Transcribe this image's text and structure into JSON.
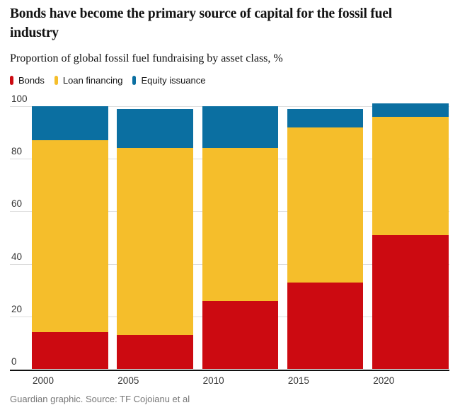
{
  "chart_data": {
    "type": "bar",
    "stacked": true,
    "title": "Bonds have become the primary source of capital for the fossil fuel industry",
    "subtitle": "Proportion of global fossil fuel fundraising by asset class, %",
    "categories": [
      "2000",
      "2005",
      "2010",
      "2015",
      "2020"
    ],
    "series": [
      {
        "name": "Bonds",
        "color": "#cc0a11",
        "values": [
          14,
          13,
          26,
          33,
          51
        ]
      },
      {
        "name": "Loan financing",
        "color": "#f5be2b",
        "values": [
          73,
          71,
          58,
          59,
          45
        ]
      },
      {
        "name": "Equity issuance",
        "color": "#0b6fa1",
        "values": [
          13,
          15,
          16,
          7,
          5
        ]
      }
    ],
    "xlabel": "",
    "ylabel": "",
    "ylim": [
      0,
      100
    ],
    "yticks": [
      0,
      20,
      40,
      60,
      80,
      100
    ],
    "grid": "horizontal",
    "legend_position": "top"
  },
  "footer": {
    "credit": "Guardian graphic. Source: TF Cojoianu et al"
  },
  "colors": {
    "text": "#121212",
    "tick_text": "#333333",
    "credit_text": "#767676",
    "gridline": "#dcdcdc",
    "axis_line": "#121212",
    "background": "#ffffff"
  }
}
